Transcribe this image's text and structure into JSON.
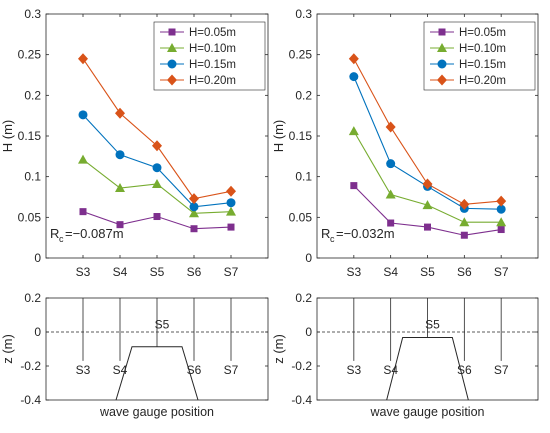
{
  "chart_data": [
    {
      "type": "line",
      "panel": "left",
      "categories": [
        "S3",
        "S4",
        "S5",
        "S6",
        "S7"
      ],
      "ylabel": "H (m)",
      "ylim": [
        0,
        0.3
      ],
      "yticks": [
        0,
        0.05,
        0.1,
        0.15,
        0.2,
        0.25,
        0.3
      ],
      "ytick_labels": [
        "0",
        "0.05",
        "0.1",
        "0.15",
        "0.2",
        "0.25",
        "0.3"
      ],
      "legend_position": "top-right",
      "annotation_main": "R",
      "annotation_sub": "c",
      "annotation_rest": "=−0.087m",
      "series": [
        {
          "name": "H=0.05m",
          "marker": "square",
          "color": "#7E2F8E",
          "values": [
            0.057,
            0.041,
            0.051,
            0.036,
            0.038
          ]
        },
        {
          "name": "H=0.10m",
          "marker": "triangle",
          "color": "#77AC30",
          "values": [
            0.121,
            0.086,
            0.091,
            0.055,
            0.057
          ]
        },
        {
          "name": "H=0.15m",
          "marker": "circle",
          "color": "#0072BD",
          "values": [
            0.176,
            0.127,
            0.111,
            0.063,
            0.068
          ]
        },
        {
          "name": "H=0.20m",
          "marker": "diamond",
          "color": "#D95319",
          "values": [
            0.245,
            0.178,
            0.138,
            0.073,
            0.082
          ]
        }
      ]
    },
    {
      "type": "line",
      "panel": "right",
      "categories": [
        "S3",
        "S4",
        "S5",
        "S6",
        "S7"
      ],
      "ylabel": "H (m)",
      "ylim": [
        0,
        0.3
      ],
      "yticks": [
        0,
        0.05,
        0.1,
        0.15,
        0.2,
        0.25,
        0.3
      ],
      "ytick_labels": [
        "0",
        "0.05",
        "0.1",
        "0.15",
        "0.2",
        "0.25",
        "0.3"
      ],
      "legend_position": "top-right",
      "annotation_main": "R",
      "annotation_sub": "c",
      "annotation_rest": "=−0.032m",
      "series": [
        {
          "name": "H=0.05m",
          "marker": "square",
          "color": "#7E2F8E",
          "values": [
            0.089,
            0.043,
            0.038,
            0.028,
            0.035
          ]
        },
        {
          "name": "H=0.10m",
          "marker": "triangle",
          "color": "#77AC30",
          "values": [
            0.156,
            0.078,
            0.065,
            0.044,
            0.044
          ]
        },
        {
          "name": "H=0.15m",
          "marker": "circle",
          "color": "#0072BD",
          "values": [
            0.223,
            0.116,
            0.088,
            0.061,
            0.06
          ]
        },
        {
          "name": "H=0.20m",
          "marker": "diamond",
          "color": "#D95319",
          "values": [
            0.245,
            0.161,
            0.091,
            0.066,
            0.07
          ]
        }
      ]
    }
  ],
  "profiles": [
    {
      "panel": "left",
      "ylabel": "z (m)",
      "xlabel": "wave gauge position",
      "ylim": [
        -0.4,
        0.2
      ],
      "yticks": [
        -0.4,
        -0.2,
        0,
        0.2
      ],
      "ytick_labels": [
        "-0.4",
        "-0.2",
        "0",
        "0.2"
      ],
      "crest_z": -0.087,
      "gauges": [
        "S3",
        "S4",
        "S5",
        "S6",
        "S7"
      ]
    },
    {
      "panel": "right",
      "ylabel": "z (m)",
      "xlabel": "wave gauge position",
      "ylim": [
        -0.4,
        0.2
      ],
      "yticks": [
        -0.4,
        -0.2,
        0,
        0.2
      ],
      "ytick_labels": [
        "-0.4",
        "-0.2",
        "0",
        "0.2"
      ],
      "crest_z": -0.032,
      "gauges": [
        "S3",
        "S4",
        "S5",
        "S6",
        "S7"
      ]
    }
  ]
}
